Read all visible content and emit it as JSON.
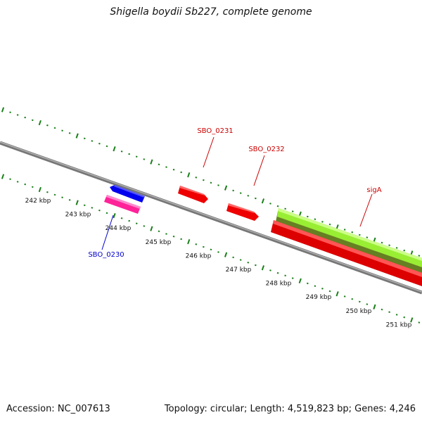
{
  "title": "Shigella boydii Sb227, complete genome",
  "footer": {
    "accession": "Accession: NC_007613",
    "summary": "Topology: circular; Length: 4,519,823 bp; Genes: 4,246"
  },
  "ruler": {
    "unit": "kbp",
    "ticks": [
      {
        "kbp": 242,
        "label": "242 kbp"
      },
      {
        "kbp": 243,
        "label": "243 kbp"
      },
      {
        "kbp": 244,
        "label": "244 kbp"
      },
      {
        "kbp": 245,
        "label": "245 kbp"
      },
      {
        "kbp": 246,
        "label": "246 kbp"
      },
      {
        "kbp": 247,
        "label": "247 kbp"
      },
      {
        "kbp": 248,
        "label": "248 kbp"
      },
      {
        "kbp": 249,
        "label": "249 kbp"
      },
      {
        "kbp": 250,
        "label": "250 kbp"
      },
      {
        "kbp": 251,
        "label": "251 kbp"
      }
    ]
  },
  "genes": [
    {
      "name": "SBO_0230",
      "label": "SBO_0230",
      "label_color": "#0000cc"
    },
    {
      "name": "SBO_0231",
      "label": "SBO_0231",
      "label_color": "#cc0000"
    },
    {
      "name": "SBO_0232",
      "label": "SBO_0232",
      "label_color": "#cc0000"
    },
    {
      "name": "sigA",
      "label": "sigA",
      "label_color": "#cc0000"
    }
  ],
  "colors": {
    "backbone": "#8c8c8c",
    "tick": "#1a7f1a",
    "forward_cds": "#ff0000",
    "reverse_cds": "#0000ff",
    "pink_feature": "#ff33aa",
    "green_feature": "#99ee33",
    "dark_green_feature": "#668822"
  }
}
